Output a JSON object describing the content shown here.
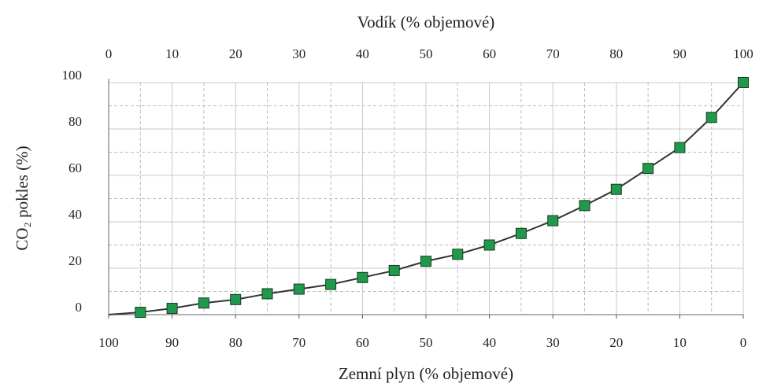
{
  "chart_data": {
    "type": "line",
    "title": "Vodík (% objemové)",
    "xlabel": "Zemní plyn (% objemové)",
    "ylabel": "CO₂ pokles (%)",
    "x": [
      0,
      5,
      10,
      15,
      20,
      25,
      30,
      35,
      40,
      45,
      50,
      55,
      60,
      65,
      70,
      75,
      80,
      85,
      90,
      95,
      100
    ],
    "series": [
      {
        "color": "#1f9a4c",
        "line_color": "#333333",
        "values": [
          0,
          1,
          2.7,
          5,
          6.5,
          9,
          11,
          13,
          16,
          19,
          23,
          26,
          30,
          35,
          40.5,
          47,
          54,
          63,
          72,
          85,
          100
        ]
      }
    ],
    "xlim": [
      0,
      100
    ],
    "xticks": [
      0,
      10,
      20,
      30,
      40,
      50,
      60,
      70,
      80,
      90,
      100
    ],
    "x2lim": [
      100,
      0
    ],
    "x2ticks": [
      100,
      90,
      80,
      70,
      60,
      50,
      40,
      30,
      20,
      10,
      0
    ],
    "ylim": [
      0,
      100
    ],
    "yticks": [
      0,
      20,
      40,
      60,
      80,
      100
    ],
    "grid": true
  }
}
